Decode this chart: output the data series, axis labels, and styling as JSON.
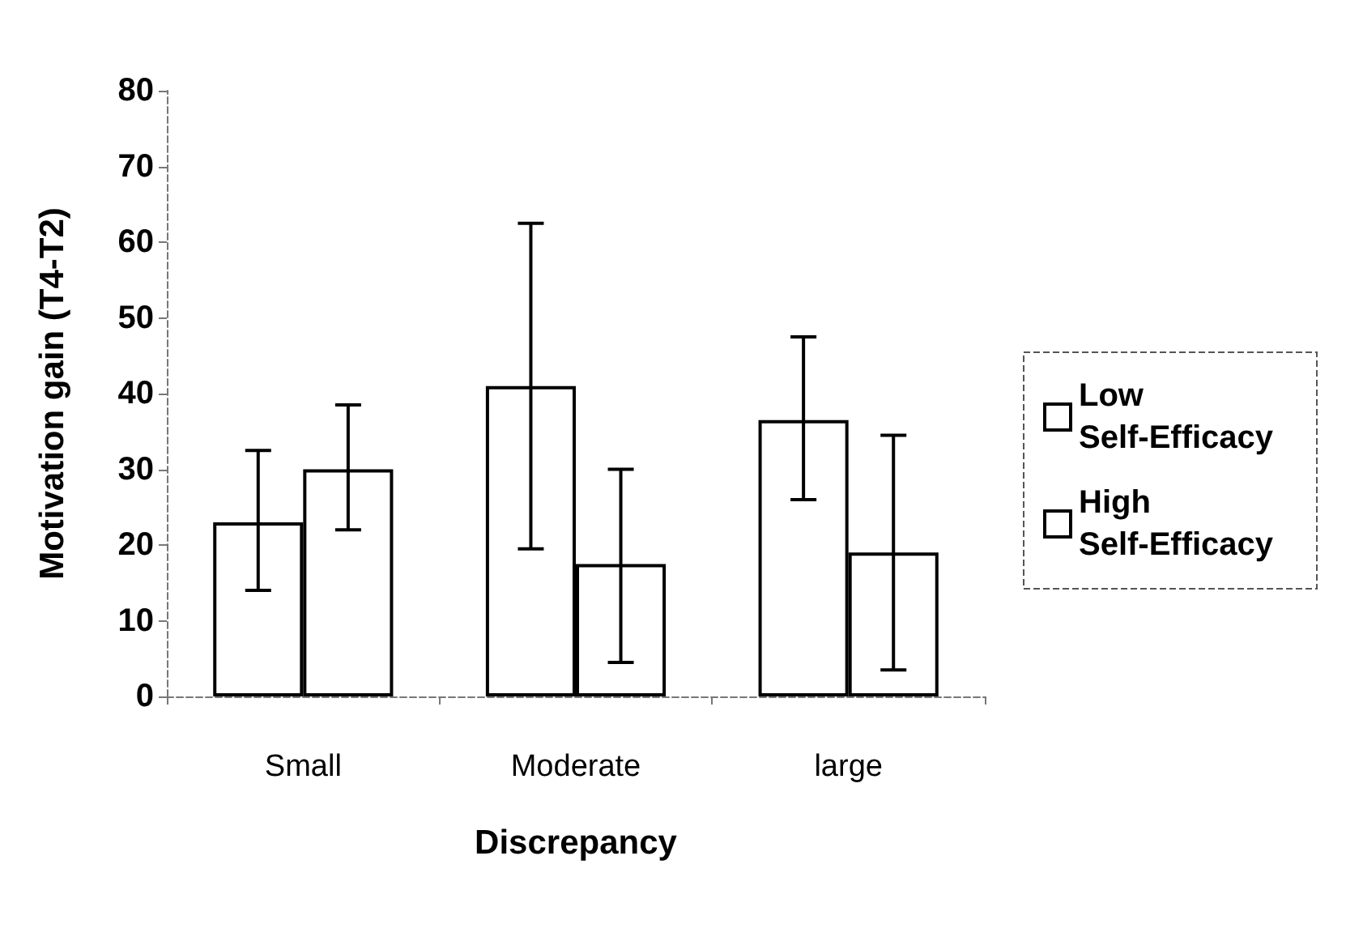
{
  "chart_data": {
    "type": "bar",
    "xlabel": "Discrepancy",
    "ylabel": "Motivation gain (T4-T2)",
    "categories": [
      "Small",
      "Moderate",
      "large"
    ],
    "series": [
      {
        "name": "Low Self-Efficacy",
        "color": "#ffffff",
        "values": [
          23,
          41,
          36.5
        ],
        "errors": [
          [
            14,
            32.5
          ],
          [
            19.5,
            62.5
          ],
          [
            26,
            47.5
          ]
        ]
      },
      {
        "name": "High Self-Efficacy",
        "color": "#ffffff",
        "values": [
          30,
          17.5,
          19
        ],
        "errors": [
          [
            22,
            38.5
          ],
          [
            4.5,
            30
          ],
          [
            3.5,
            34.5
          ]
        ]
      }
    ],
    "ylim": [
      0,
      80
    ],
    "yticks": [
      0,
      10,
      20,
      30,
      40,
      50,
      60,
      70,
      80
    ],
    "grid": false,
    "legend": "right"
  }
}
